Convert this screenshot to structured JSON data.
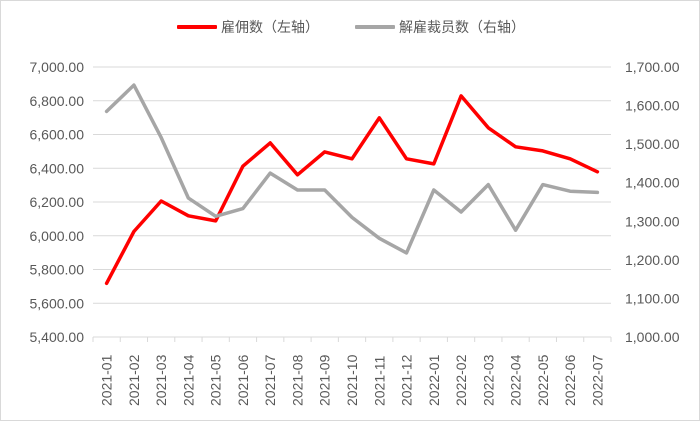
{
  "legend": {
    "items": [
      {
        "label": "雇佣数（左轴）",
        "color": "#FF0000"
      },
      {
        "label": "解雇裁员数（右轴）",
        "color": "#A6A6A6"
      }
    ]
  },
  "chart_data": {
    "type": "line",
    "title": "",
    "xlabel": "",
    "ylabel": "",
    "y2label": "",
    "legend_position": "top",
    "grid": true,
    "categories": [
      "2021-01",
      "2021-02",
      "2021-03",
      "2021-04",
      "2021-05",
      "2021-06",
      "2021-07",
      "2021-08",
      "2021-09",
      "2021-10",
      "2021-11",
      "2021-12",
      "2022-01",
      "2022-02",
      "2022-03",
      "2022-04",
      "2022-05",
      "2022-06",
      "2022-07"
    ],
    "ylim": [
      5400,
      7000
    ],
    "y2lim": [
      1000,
      1700
    ],
    "y_ticks": [
      "5,400.00",
      "5,600.00",
      "5,800.00",
      "6,000.00",
      "6,200.00",
      "6,400.00",
      "6,600.00",
      "6,800.00",
      "7,000.00"
    ],
    "y2_ticks": [
      "1,000.00",
      "1,100.00",
      "1,200.00",
      "1,300.00",
      "1,400.00",
      "1,500.00",
      "1,600.00",
      "1,700.00"
    ],
    "series": [
      {
        "name": "雇佣数（左轴）",
        "axis": "left",
        "color": "#FF0000",
        "values": [
          5718,
          6025,
          6206,
          6118,
          6088,
          6412,
          6550,
          6361,
          6497,
          6456,
          6699,
          6456,
          6426,
          6829,
          6640,
          6527,
          6503,
          6456,
          6379
        ]
      },
      {
        "name": "解雇裁员数（右轴）",
        "axis": "right",
        "color": "#A6A6A6",
        "values": [
          1585,
          1653,
          1517,
          1360,
          1313,
          1333,
          1425,
          1381,
          1381,
          1310,
          1256,
          1218,
          1381,
          1324,
          1395,
          1277,
          1395,
          1378,
          1375
        ]
      }
    ]
  }
}
